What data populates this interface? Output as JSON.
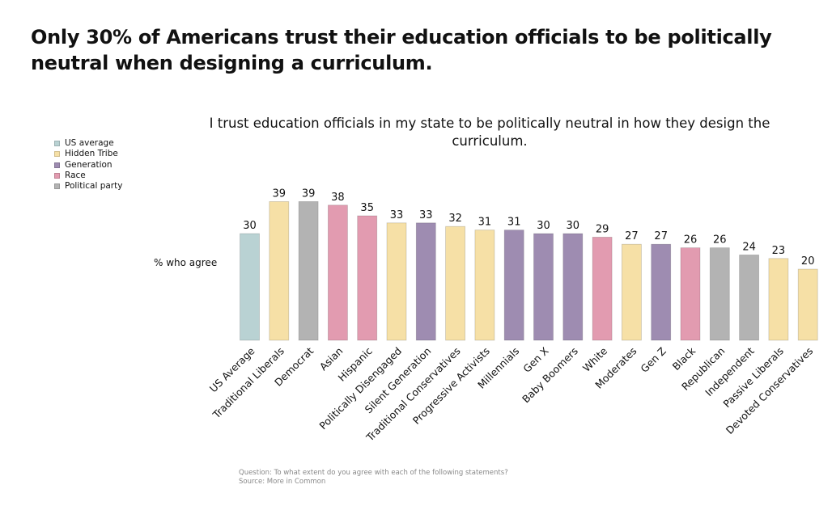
{
  "headline": "Only 30% of Americans trust their education officials to be politically neutral when designing a curriculum.",
  "legend": [
    {
      "label": "US average",
      "color": "#b9d2d3"
    },
    {
      "label": "Hidden Tribe",
      "color": "#f6e0a6"
    },
    {
      "label": "Generation",
      "color": "#9e8cb1"
    },
    {
      "label": "Race",
      "color": "#e29bb0"
    },
    {
      "label": "Political party",
      "color": "#b3b3b3"
    }
  ],
  "footnote": {
    "question": "Question: To what extent do you agree with each of the following statements?",
    "source": "Source: More in Common"
  },
  "chart_data": {
    "type": "bar",
    "title": "I trust education officials in my state to be politically neutral in how they design the curriculum.",
    "ylabel": "% who agree",
    "xlabel": "",
    "ylim": [
      0,
      40
    ],
    "grid": false,
    "legend_position": "left",
    "categories": [
      "US Average",
      "Traditional Liberals",
      "Democrat",
      "Asian",
      "Hispanic",
      "Politically Disengaged",
      "Silent Generation",
      "Traditional Conservatives",
      "Progressive Activists",
      "Millennials",
      "Gen X",
      "Baby Boomers",
      "White",
      "Moderates",
      "Gen Z",
      "Black",
      "Republican",
      "Independent",
      "Passive Liberals",
      "Devoted Conservatives"
    ],
    "values": [
      30,
      39,
      39,
      38,
      35,
      33,
      33,
      32,
      31,
      31,
      30,
      30,
      29,
      27,
      27,
      26,
      26,
      24,
      23,
      20
    ],
    "groups": [
      "US average",
      "Hidden Tribe",
      "Political party",
      "Race",
      "Race",
      "Hidden Tribe",
      "Generation",
      "Hidden Tribe",
      "Hidden Tribe",
      "Generation",
      "Generation",
      "Generation",
      "Race",
      "Hidden Tribe",
      "Generation",
      "Race",
      "Political party",
      "Political party",
      "Hidden Tribe",
      "Hidden Tribe"
    ]
  }
}
